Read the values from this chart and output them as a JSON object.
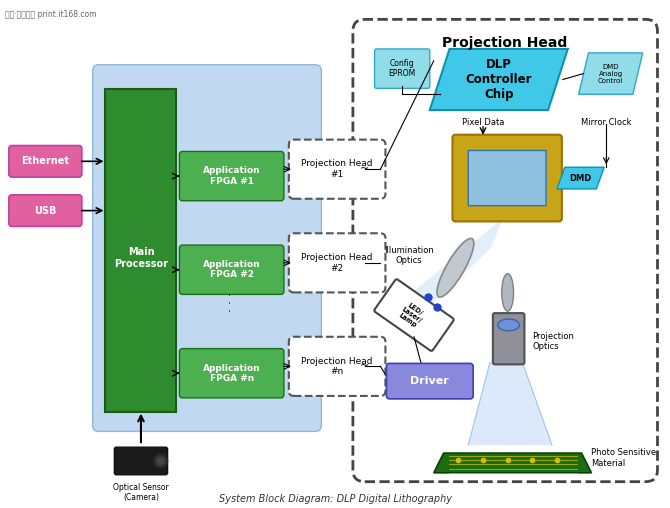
{
  "title": "System Block Diagram: DLP Digital Lithography",
  "watermark": "你的·打印频道 print.it168.com",
  "projection_head_title": "Projection Head",
  "bg_color": "#ffffff",
  "left_panel_color": "#c0d8f0",
  "main_proc_color": "#2e8b2e",
  "fpga_color": "#4caf50",
  "ethernet_color": "#e060a0",
  "usb_color": "#e060a0",
  "dlp_chip_color": "#40c8e8",
  "config_eprom_color": "#90dce8",
  "dmd_analog_color": "#90dce8",
  "dmd_label_color": "#40c8e8",
  "driver_color": "#8888dd",
  "caption": "System Block Diagram: DLP Digital Lithography"
}
